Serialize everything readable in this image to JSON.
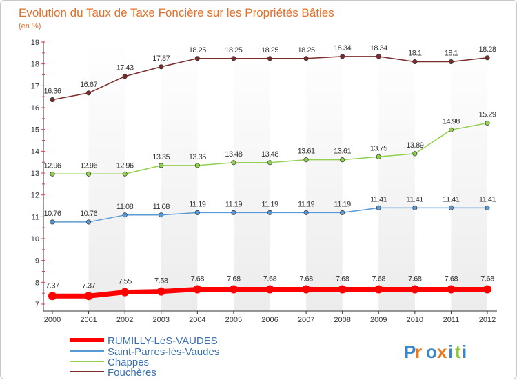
{
  "chart_data": {
    "type": "line",
    "title": "Evolution du Taux de Taxe Foncière sur les Propriétés Bâties",
    "subtitle": "(en %)",
    "x": [
      "2000",
      "2001",
      "2002",
      "2003",
      "2004",
      "2005",
      "2006",
      "2007",
      "2008",
      "2009",
      "2010",
      "2011",
      "2012"
    ],
    "yticks": [
      "7",
      "8",
      "9",
      "10",
      "11",
      "12",
      "13",
      "14",
      "15",
      "16",
      "17",
      "18",
      "19"
    ],
    "ylim": [
      7,
      19
    ],
    "grid": false,
    "legend_position": "bottom-left",
    "series": [
      {
        "name": "RUMILLY-LèS-VAUDES",
        "color": "#ff0000",
        "values": [
          7.37,
          7.37,
          7.55,
          7.58,
          7.68,
          7.68,
          7.68,
          7.68,
          7.68,
          7.68,
          7.68,
          7.68,
          7.68
        ],
        "labels": [
          "7.37",
          "7.37",
          "7.55",
          "7.58",
          "7.68",
          "7.68",
          "7.68",
          "7.68",
          "7.68",
          "7.68",
          "7.68",
          "7.68",
          "7.68"
        ]
      },
      {
        "name": "Saint-Parres-lès-Vaudes",
        "color": "#5b9bd5",
        "values": [
          10.76,
          10.76,
          11.08,
          11.08,
          11.19,
          11.19,
          11.19,
          11.19,
          11.19,
          11.41,
          11.41,
          11.41,
          11.41
        ],
        "labels": [
          "10.76",
          "10.76",
          "11.08",
          "11.08",
          "11.19",
          "11.19",
          "11.19",
          "11.19",
          "11.19",
          "11.41",
          "11.41",
          "11.41",
          "11.41"
        ]
      },
      {
        "name": "Chappes",
        "color": "#92d050",
        "values": [
          12.96,
          12.96,
          12.96,
          13.35,
          13.35,
          13.48,
          13.48,
          13.61,
          13.61,
          13.75,
          13.89,
          14.98,
          15.29
        ],
        "labels": [
          "12.96",
          "12.96",
          "12.96",
          "13.35",
          "13.35",
          "13.48",
          "13.48",
          "13.61",
          "13.61",
          "13.75",
          "13.89",
          "14.98",
          "15.29"
        ]
      },
      {
        "name": "Fouchères",
        "color": "#7b2c2c",
        "values": [
          16.36,
          16.67,
          17.43,
          17.87,
          18.25,
          18.25,
          18.25,
          18.25,
          18.34,
          18.34,
          18.1,
          18.1,
          18.28
        ],
        "labels": [
          "16.36",
          "16.67",
          "17.43",
          "17.87",
          "18.25",
          "18.25",
          "18.25",
          "18.25",
          "18.34",
          "18.34",
          "18.1",
          "18.1",
          "18.28"
        ]
      }
    ]
  },
  "brand": {
    "letters": [
      "P",
      "r",
      "o",
      "x",
      "i",
      "t",
      "i"
    ],
    "colors": [
      "#3a86c8",
      "#e8781e",
      "#3a86c8",
      "#e8781e",
      "#3a86c8",
      "#8dc63f",
      "#3a86c8"
    ]
  }
}
